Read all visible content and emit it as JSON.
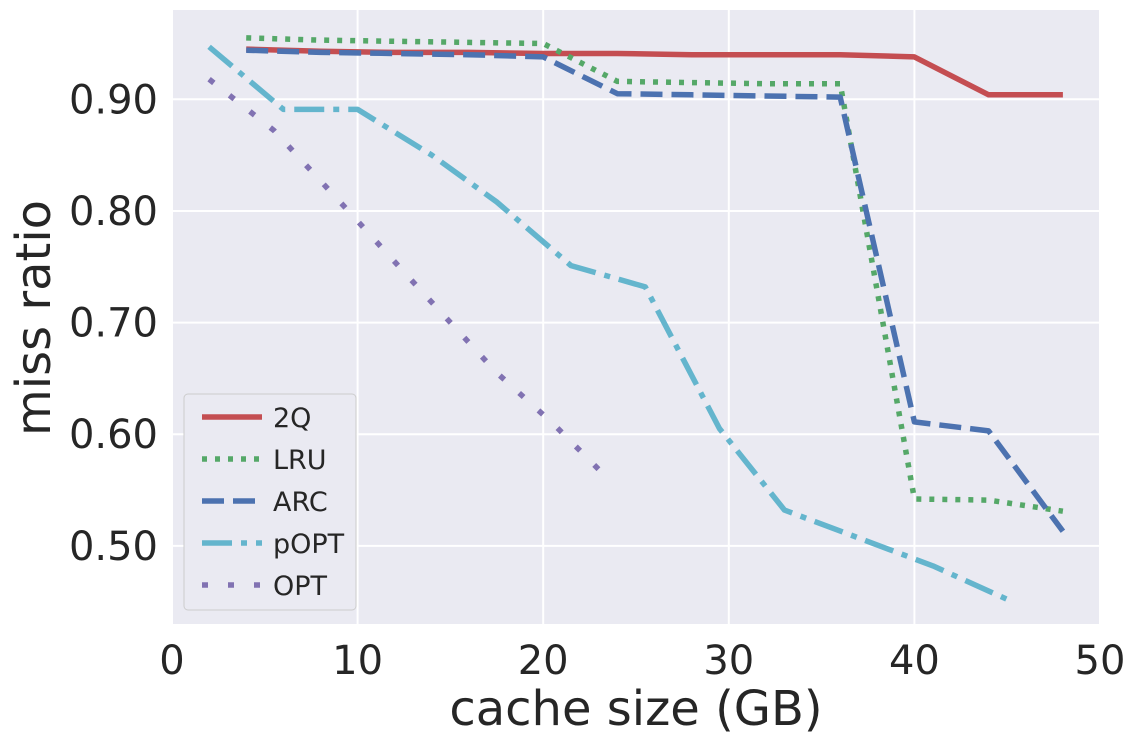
{
  "chart_data": {
    "type": "line",
    "xlabel": "cache size (GB)",
    "ylabel": "miss ratio",
    "xlim": [
      0,
      50
    ],
    "ylim": [
      0.43,
      0.98
    ],
    "xticks": [
      0,
      10,
      20,
      30,
      40,
      50
    ],
    "xtick_labels": [
      "0",
      "10",
      "20",
      "30",
      "40",
      "50"
    ],
    "yticks": [
      0.5,
      0.6,
      0.7,
      0.8,
      0.9
    ],
    "ytick_labels": [
      "0.50",
      "0.60",
      "0.70",
      "0.80",
      "0.90"
    ],
    "grid": true,
    "legend_position": "lower-left",
    "background": "#eaeaf2",
    "series": [
      {
        "name": "2Q",
        "color": "#c44e52",
        "dash": "solid",
        "x": [
          4,
          8,
          12,
          16,
          20,
          24,
          28,
          32,
          36,
          40,
          44,
          48
        ],
        "y": [
          0.945,
          0.943,
          0.942,
          0.942,
          0.941,
          0.941,
          0.94,
          0.94,
          0.94,
          0.938,
          0.904,
          0.904
        ]
      },
      {
        "name": "LRU",
        "color": "#55a868",
        "dash": "dotted",
        "x": [
          4,
          8,
          12,
          16,
          20,
          24,
          28,
          32,
          36,
          40,
          44,
          48
        ],
        "y": [
          0.955,
          0.953,
          0.952,
          0.951,
          0.95,
          0.916,
          0.915,
          0.914,
          0.914,
          0.542,
          0.541,
          0.531
        ]
      },
      {
        "name": "ARC",
        "color": "#4c72b0",
        "dash": "dashed",
        "x": [
          4,
          8,
          12,
          16,
          20,
          24,
          28,
          32,
          36,
          40,
          44,
          48
        ],
        "y": [
          0.944,
          0.942,
          0.941,
          0.94,
          0.938,
          0.905,
          0.904,
          0.903,
          0.902,
          0.611,
          0.603,
          0.513
        ]
      },
      {
        "name": "pOPT",
        "color": "#64b5cd",
        "dash": "dashdot",
        "x": [
          2,
          6,
          10,
          14,
          17.5,
          21.5,
          25.5,
          29.5,
          33,
          37,
          41,
          45
        ],
        "y": [
          0.947,
          0.891,
          0.891,
          0.85,
          0.808,
          0.751,
          0.732,
          0.605,
          0.532,
          0.507,
          0.482,
          0.452
        ]
      },
      {
        "name": "OPT",
        "color": "#8172b2",
        "dash": "loosedashdot",
        "x": [
          2,
          5.5,
          9.5,
          13.5,
          17.5,
          20.5,
          23.5
        ],
        "y": [
          0.918,
          0.872,
          0.8,
          0.727,
          0.655,
          0.61,
          0.56
        ]
      }
    ]
  }
}
